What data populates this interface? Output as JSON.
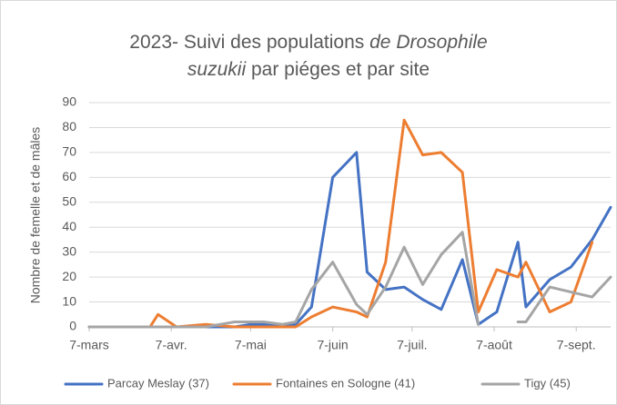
{
  "chart_data": {
    "type": "line",
    "title": [
      [
        {
          "text": "2023- Suivi des populations ",
          "italic": false
        },
        {
          "text": "de Drosophile",
          "italic": true
        }
      ],
      [
        {
          "text": "suzukii",
          "italic": true
        },
        {
          "text": "  par piéges et par site",
          "italic": false
        }
      ]
    ],
    "ylabel": "Nombre de femelle et de mâles",
    "x": [
      "03-07",
      "03-30",
      "04-02",
      "04-09",
      "04-20",
      "05-01",
      "05-07",
      "05-12",
      "05-19",
      "05-24",
      "05-30",
      "06-07",
      "06-16",
      "06-20",
      "06-27",
      "07-04",
      "07-11",
      "07-18",
      "07-26",
      "08-01",
      "08-08",
      "08-16",
      "08-19",
      "08-28",
      "09-05",
      "09-13",
      "09-20"
    ],
    "series": [
      {
        "name": "Parcay Meslay (37)",
        "color": "#4472c4",
        "values": [
          0,
          0,
          0,
          0,
          0,
          0,
          1,
          1,
          0,
          1,
          8,
          60,
          70,
          22,
          15,
          16,
          11,
          7,
          27,
          1,
          6,
          34,
          8,
          19,
          24,
          35,
          48
        ]
      },
      {
        "name": "Fontaines en Sologne (41)",
        "color": "#ed7d31",
        "values": [
          0,
          0,
          5,
          0,
          1,
          0,
          0,
          0,
          0,
          0,
          4,
          8,
          6,
          4,
          26,
          83,
          69,
          70,
          62,
          6,
          23,
          20,
          26,
          6,
          10,
          34,
          null
        ]
      },
      {
        "name": "Tigy (45)",
        "color": "#a5a5a5",
        "values": [
          0,
          0,
          0,
          0,
          0,
          2,
          2,
          2,
          1,
          2,
          15,
          26,
          9,
          5,
          16,
          32,
          17,
          29,
          38,
          1,
          null,
          2,
          2,
          16,
          14,
          12,
          20
        ]
      }
    ],
    "xlim": [
      "03-07",
      "09-20"
    ],
    "xticks": [
      {
        "value": "03-07",
        "label": "7-mars"
      },
      {
        "value": "04-07",
        "label": "7-avr."
      },
      {
        "value": "05-07",
        "label": "7-mai"
      },
      {
        "value": "06-07",
        "label": "7-juin"
      },
      {
        "value": "07-07",
        "label": "7-juil."
      },
      {
        "value": "08-07",
        "label": "7-août"
      },
      {
        "value": "09-07",
        "label": "7-sept."
      }
    ],
    "ylim": [
      0,
      90
    ],
    "yticks": [
      0,
      10,
      20,
      30,
      40,
      50,
      60,
      70,
      80,
      90
    ],
    "grid": true,
    "legend": "bottom"
  }
}
